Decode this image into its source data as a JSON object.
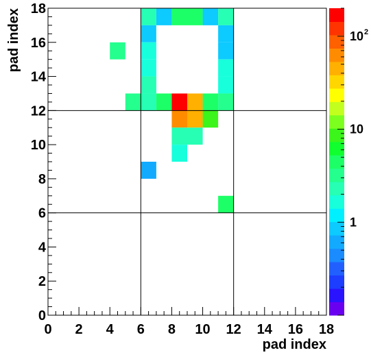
{
  "chart_data": {
    "type": "heatmap",
    "xlabel": "pad index",
    "ylabel": "pad index",
    "xlim": [
      0,
      18
    ],
    "ylim": [
      0,
      18
    ],
    "x_tick_labels": [
      "0",
      "2",
      "4",
      "6",
      "8",
      "10",
      "12",
      "14",
      "16",
      "18"
    ],
    "y_tick_labels": [
      "0",
      "2",
      "4",
      "6",
      "8",
      "10",
      "12",
      "14",
      "16",
      "18"
    ],
    "grid_lines": {
      "x": [
        6,
        12
      ],
      "y": [
        6,
        12
      ]
    },
    "color_scale": "log",
    "zlim": [
      0.1,
      200
    ],
    "palette_labels": [
      {
        "value": 1,
        "text": "1"
      },
      {
        "value": 10,
        "text": "10"
      },
      {
        "value": 100,
        "base": "10",
        "exponent": "2"
      }
    ],
    "cells": [
      {
        "x": 6,
        "y": 17,
        "value": 2
      },
      {
        "x": 7,
        "y": 17,
        "value": 1
      },
      {
        "x": 8,
        "y": 17,
        "value": 4
      },
      {
        "x": 9,
        "y": 17,
        "value": 4
      },
      {
        "x": 10,
        "y": 17,
        "value": 1
      },
      {
        "x": 11,
        "y": 17,
        "value": 2
      },
      {
        "x": 6,
        "y": 16,
        "value": 1
      },
      {
        "x": 11,
        "y": 16,
        "value": 1
      },
      {
        "x": 4,
        "y": 15,
        "value": 3
      },
      {
        "x": 6,
        "y": 15,
        "value": 1.5
      },
      {
        "x": 11,
        "y": 15,
        "value": 1
      },
      {
        "x": 6,
        "y": 14,
        "value": 1.5
      },
      {
        "x": 11,
        "y": 14,
        "value": 1.5
      },
      {
        "x": 6,
        "y": 13,
        "value": 2
      },
      {
        "x": 11,
        "y": 13,
        "value": 1.5
      },
      {
        "x": 5,
        "y": 12,
        "value": 3
      },
      {
        "x": 6,
        "y": 12,
        "value": 2
      },
      {
        "x": 7,
        "y": 12,
        "value": 4
      },
      {
        "x": 8,
        "y": 12,
        "value": 150
      },
      {
        "x": 9,
        "y": 12,
        "value": 40
      },
      {
        "x": 10,
        "y": 12,
        "value": 4
      },
      {
        "x": 11,
        "y": 12,
        "value": 3
      },
      {
        "x": 8,
        "y": 11,
        "value": 60
      },
      {
        "x": 9,
        "y": 11,
        "value": 40
      },
      {
        "x": 10,
        "y": 11,
        "value": 10
      },
      {
        "x": 8,
        "y": 10,
        "value": 2
      },
      {
        "x": 9,
        "y": 10,
        "value": 2
      },
      {
        "x": 8,
        "y": 9,
        "value": 1.5
      },
      {
        "x": 6,
        "y": 8,
        "value": 0.6
      },
      {
        "x": 11,
        "y": 6,
        "value": 4
      }
    ]
  },
  "colors": {
    "frame": "#000000",
    "background": "#ffffff",
    "palette": [
      "#6a00f0",
      "#2a13ff",
      "#1d3dff",
      "#2160ff",
      "#1a8cff",
      "#12aaff",
      "#0dcaff",
      "#00f0ff",
      "#18ffdc",
      "#26ffb4",
      "#24ff8e",
      "#1dff66",
      "#10ff2e",
      "#3cf51a",
      "#7cff1e",
      "#c3ff1e",
      "#ffff00",
      "#ffd600",
      "#ffb000",
      "#ff8c00",
      "#ff6000",
      "#ff3400",
      "#ff0000"
    ]
  }
}
